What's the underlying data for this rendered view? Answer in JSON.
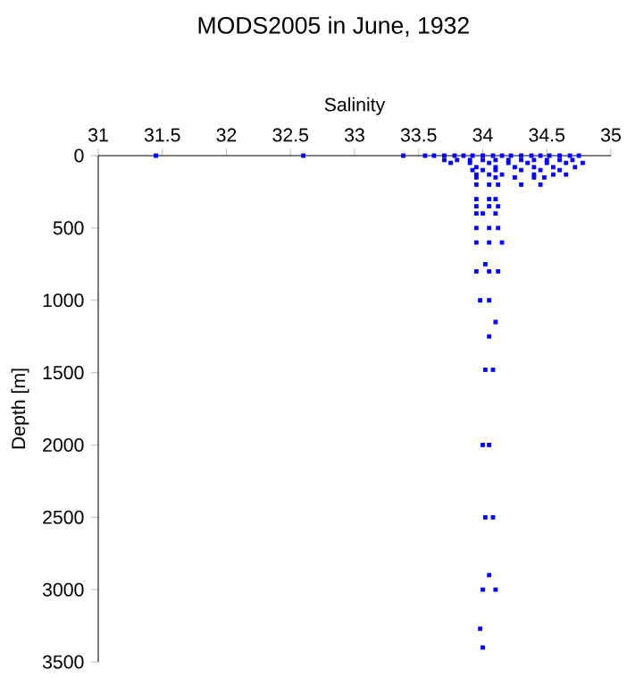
{
  "chart_data": {
    "type": "scatter",
    "title": "MODS2005 in June, 1932",
    "xlabel": "Salinity",
    "ylabel": "Depth [m]",
    "xlim": [
      31,
      35
    ],
    "xticks": [
      31,
      31.5,
      32,
      32.5,
      33,
      33.5,
      34,
      34.5,
      35
    ],
    "ylim": [
      3500,
      0
    ],
    "yticks": [
      0,
      500,
      1000,
      1500,
      2000,
      2500,
      3000,
      3500
    ],
    "marker": "square",
    "series": [
      {
        "color": "#0000ff",
        "x": [
          31.45,
          32.6,
          33.38,
          33.55,
          33.62,
          33.7,
          33.78,
          33.85,
          33.92,
          34.0,
          34.08,
          34.15,
          34.22,
          34.3,
          34.38,
          34.45,
          34.52,
          34.6,
          34.68,
          34.75,
          33.7,
          33.8,
          33.9,
          34.0,
          34.1,
          34.2,
          34.3,
          34.4,
          34.5,
          34.6,
          34.7,
          33.75,
          33.9,
          34.05,
          34.2,
          34.35,
          34.5,
          34.65,
          34.78,
          33.95,
          34.1,
          34.25,
          34.4,
          34.55,
          34.72,
          33.92,
          34.0,
          34.1,
          34.3,
          34.45,
          34.6,
          33.95,
          34.05,
          34.15,
          34.4,
          34.55,
          34.65,
          33.95,
          34.1,
          34.25,
          34.4,
          34.48,
          33.95,
          34.05,
          34.12,
          34.3,
          34.45,
          33.95,
          34.05,
          34.1,
          33.95,
          34.05,
          34.12,
          33.95,
          34.0,
          34.1,
          33.95,
          34.05,
          34.12,
          33.95,
          34.05,
          34.15,
          34.02,
          33.95,
          34.05,
          34.12,
          33.98,
          34.05,
          34.1,
          34.05,
          34.02,
          34.08,
          34.0,
          34.05,
          34.02,
          34.08,
          34.05,
          34.0,
          34.1,
          33.98,
          34.0
        ],
        "values": [
          0,
          0,
          0,
          0,
          0,
          0,
          0,
          0,
          0,
          0,
          0,
          0,
          0,
          0,
          0,
          0,
          0,
          0,
          0,
          0,
          30,
          30,
          30,
          30,
          30,
          30,
          30,
          30,
          30,
          30,
          30,
          50,
          50,
          50,
          50,
          50,
          50,
          50,
          50,
          80,
          80,
          80,
          80,
          80,
          80,
          100,
          100,
          100,
          100,
          100,
          100,
          130,
          130,
          130,
          130,
          130,
          130,
          150,
          150,
          150,
          150,
          150,
          200,
          200,
          200,
          200,
          200,
          300,
          300,
          300,
          350,
          350,
          350,
          400,
          400,
          400,
          500,
          500,
          500,
          600,
          600,
          600,
          750,
          800,
          800,
          800,
          1000,
          1000,
          1150,
          1250,
          1480,
          1480,
          2000,
          2000,
          2500,
          2500,
          2900,
          3000,
          3000,
          3270,
          3400
        ]
      }
    ]
  }
}
